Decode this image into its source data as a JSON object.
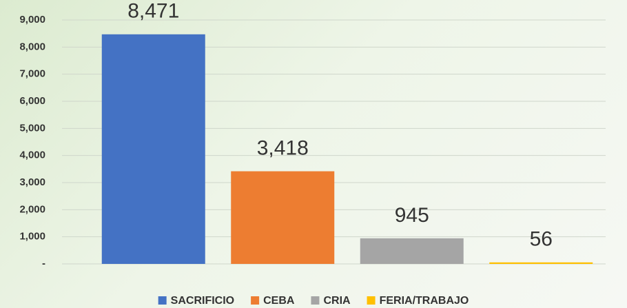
{
  "chart_data": {
    "type": "bar",
    "series": [
      {
        "name": "SACRIFICIO",
        "color": "#4472c4",
        "values": [
          8471
        ],
        "value_labels": [
          "8,471"
        ]
      },
      {
        "name": "CEBA",
        "color": "#ed7d31",
        "values": [
          3418
        ],
        "value_labels": [
          "3,418"
        ]
      },
      {
        "name": "CRIA",
        "color": "#a5a5a5",
        "values": [
          945
        ],
        "value_labels": [
          "945"
        ]
      },
      {
        "name": "FERIA/TRABAJO",
        "color": "#ffc000",
        "values": [
          56
        ],
        "value_labels": [
          "56"
        ]
      }
    ],
    "ylim": [
      0,
      9000
    ],
    "yticks": [
      {
        "value": 0,
        "label": "-"
      },
      {
        "value": 1000,
        "label": "1,000"
      },
      {
        "value": 2000,
        "label": "2,000"
      },
      {
        "value": 3000,
        "label": "3,000"
      },
      {
        "value": 4000,
        "label": "4,000"
      },
      {
        "value": 5000,
        "label": "5,000"
      },
      {
        "value": 6000,
        "label": "6,000"
      },
      {
        "value": 7000,
        "label": "7,000"
      },
      {
        "value": 8000,
        "label": "8,000"
      },
      {
        "value": 9000,
        "label": "9,000"
      }
    ],
    "grid": true,
    "legend": "bottom"
  }
}
